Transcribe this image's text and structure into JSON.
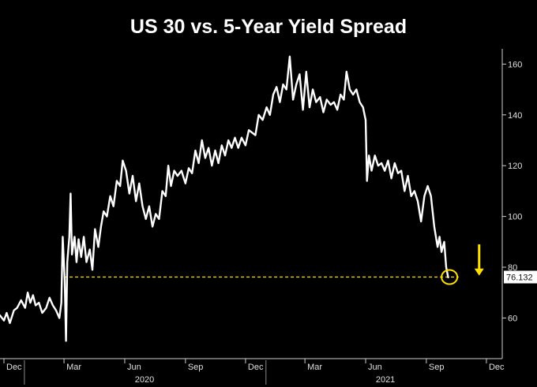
{
  "chart_data": {
    "type": "line",
    "title": "US 30 vs. 5-Year Yield Spread",
    "xlabel": "",
    "ylabel": "",
    "xlim": [
      "2019-11-25",
      "2021-12-25"
    ],
    "ylim": [
      44,
      166
    ],
    "x_ticks": [
      "Dec",
      "Mar",
      "Jun",
      "Sep",
      "Dec",
      "Mar",
      "Jun",
      "Sep",
      "Dec"
    ],
    "x_tick_dates": [
      "2019-12-01",
      "2020-03-01",
      "2020-06-01",
      "2020-09-01",
      "2020-12-01",
      "2021-03-01",
      "2021-06-01",
      "2021-09-01",
      "2021-12-01"
    ],
    "year_labels": [
      {
        "text": "2020",
        "date": "2020-07-01"
      },
      {
        "text": "2021",
        "date": "2021-07-01"
      }
    ],
    "y_ticks": [
      60,
      80,
      100,
      120,
      140,
      160
    ],
    "y_axis_position": "right",
    "grid": false,
    "last_value_label": "76.132",
    "reference_line": {
      "y": 76.132,
      "from": "2020-03-01",
      "to": "2021-10-20"
    },
    "series": [
      {
        "color": "#ffffff",
        "points": [
          [
            "2019-11-25",
            61
          ],
          [
            "2019-12-01",
            59
          ],
          [
            "2019-12-05",
            62
          ],
          [
            "2019-12-10",
            58
          ],
          [
            "2019-12-16",
            63
          ],
          [
            "2019-12-21",
            64
          ],
          [
            "2019-12-27",
            67
          ],
          [
            "2020-01-02",
            64
          ],
          [
            "2020-01-06",
            70
          ],
          [
            "2020-01-10",
            66
          ],
          [
            "2020-01-14",
            69
          ],
          [
            "2020-01-18",
            65
          ],
          [
            "2020-01-23",
            66
          ],
          [
            "2020-01-28",
            62
          ],
          [
            "2020-02-03",
            64
          ],
          [
            "2020-02-08",
            68
          ],
          [
            "2020-02-13",
            65
          ],
          [
            "2020-02-18",
            63
          ],
          [
            "2020-02-23",
            60
          ],
          [
            "2020-02-26",
            66
          ],
          [
            "2020-02-28",
            92
          ],
          [
            "2020-03-02",
            75
          ],
          [
            "2020-03-04",
            51
          ],
          [
            "2020-03-06",
            82
          ],
          [
            "2020-03-09",
            92
          ],
          [
            "2020-03-11",
            109
          ],
          [
            "2020-03-13",
            85
          ],
          [
            "2020-03-17",
            92
          ],
          [
            "2020-03-20",
            82
          ],
          [
            "2020-03-23",
            91
          ],
          [
            "2020-03-27",
            84
          ],
          [
            "2020-03-31",
            92
          ],
          [
            "2020-04-04",
            82
          ],
          [
            "2020-04-09",
            87
          ],
          [
            "2020-04-13",
            79
          ],
          [
            "2020-04-17",
            95
          ],
          [
            "2020-04-22",
            88
          ],
          [
            "2020-04-26",
            96
          ],
          [
            "2020-04-30",
            102
          ],
          [
            "2020-05-05",
            100
          ],
          [
            "2020-05-10",
            108
          ],
          [
            "2020-05-15",
            104
          ],
          [
            "2020-05-20",
            114
          ],
          [
            "2020-05-25",
            112
          ],
          [
            "2020-05-29",
            122
          ],
          [
            "2020-06-03",
            118
          ],
          [
            "2020-06-08",
            109
          ],
          [
            "2020-06-13",
            116
          ],
          [
            "2020-06-18",
            106
          ],
          [
            "2020-06-23",
            113
          ],
          [
            "2020-06-28",
            104
          ],
          [
            "2020-07-03",
            99
          ],
          [
            "2020-07-08",
            104
          ],
          [
            "2020-07-13",
            96
          ],
          [
            "2020-07-18",
            101
          ],
          [
            "2020-07-23",
            99
          ],
          [
            "2020-07-28",
            110
          ],
          [
            "2020-08-02",
            108
          ],
          [
            "2020-08-06",
            120
          ],
          [
            "2020-08-10",
            112
          ],
          [
            "2020-08-15",
            118
          ],
          [
            "2020-08-20",
            116
          ],
          [
            "2020-08-26",
            118
          ],
          [
            "2020-09-01",
            113
          ],
          [
            "2020-09-06",
            119
          ],
          [
            "2020-09-11",
            117
          ],
          [
            "2020-09-16",
            126
          ],
          [
            "2020-09-21",
            121
          ],
          [
            "2020-09-26",
            130
          ],
          [
            "2020-10-01",
            123
          ],
          [
            "2020-10-06",
            127
          ],
          [
            "2020-10-11",
            120
          ],
          [
            "2020-10-16",
            126
          ],
          [
            "2020-10-21",
            121
          ],
          [
            "2020-10-26",
            128
          ],
          [
            "2020-10-31",
            124
          ],
          [
            "2020-11-05",
            130
          ],
          [
            "2020-11-10",
            127
          ],
          [
            "2020-11-15",
            131
          ],
          [
            "2020-11-20",
            127
          ],
          [
            "2020-11-25",
            131
          ],
          [
            "2020-12-01",
            128
          ],
          [
            "2020-12-06",
            134
          ],
          [
            "2020-12-11",
            133
          ],
          [
            "2020-12-16",
            132
          ],
          [
            "2020-12-21",
            140
          ],
          [
            "2020-12-27",
            138
          ],
          [
            "2021-01-02",
            143
          ],
          [
            "2021-01-07",
            140
          ],
          [
            "2021-01-12",
            148
          ],
          [
            "2021-01-17",
            151
          ],
          [
            "2021-01-22",
            145
          ],
          [
            "2021-01-27",
            152
          ],
          [
            "2021-02-01",
            150
          ],
          [
            "2021-02-06",
            163
          ],
          [
            "2021-02-11",
            146
          ],
          [
            "2021-02-16",
            152
          ],
          [
            "2021-02-21",
            156
          ],
          [
            "2021-02-26",
            142
          ],
          [
            "2021-03-03",
            157
          ],
          [
            "2021-03-08",
            143
          ],
          [
            "2021-03-13",
            150
          ],
          [
            "2021-03-18",
            145
          ],
          [
            "2021-03-24",
            147
          ],
          [
            "2021-03-29",
            141
          ],
          [
            "2021-04-03",
            146
          ],
          [
            "2021-04-09",
            144
          ],
          [
            "2021-04-14",
            145
          ],
          [
            "2021-04-19",
            142
          ],
          [
            "2021-04-24",
            148
          ],
          [
            "2021-04-29",
            146
          ],
          [
            "2021-05-03",
            157
          ],
          [
            "2021-05-08",
            150
          ],
          [
            "2021-05-13",
            148
          ],
          [
            "2021-05-18",
            150
          ],
          [
            "2021-05-23",
            145
          ],
          [
            "2021-05-28",
            143
          ],
          [
            "2021-06-01",
            138
          ],
          [
            "2021-06-03",
            114
          ],
          [
            "2021-06-06",
            124
          ],
          [
            "2021-06-10",
            118
          ],
          [
            "2021-06-15",
            124
          ],
          [
            "2021-06-20",
            120
          ],
          [
            "2021-06-25",
            121
          ],
          [
            "2021-06-30",
            118
          ],
          [
            "2021-07-05",
            122
          ],
          [
            "2021-07-10",
            115
          ],
          [
            "2021-07-15",
            121
          ],
          [
            "2021-07-20",
            117
          ],
          [
            "2021-07-25",
            118
          ],
          [
            "2021-07-30",
            110
          ],
          [
            "2021-08-04",
            116
          ],
          [
            "2021-08-09",
            108
          ],
          [
            "2021-08-14",
            110
          ],
          [
            "2021-08-19",
            106
          ],
          [
            "2021-08-24",
            98
          ],
          [
            "2021-08-29",
            108
          ],
          [
            "2021-09-03",
            112
          ],
          [
            "2021-09-08",
            108
          ],
          [
            "2021-09-13",
            96
          ],
          [
            "2021-09-18",
            88
          ],
          [
            "2021-09-21",
            92
          ],
          [
            "2021-09-24",
            86
          ],
          [
            "2021-09-28",
            90
          ],
          [
            "2021-10-01",
            80
          ],
          [
            "2021-10-04",
            76
          ]
        ]
      }
    ]
  },
  "annotations": {
    "circle": {
      "date": "2021-10-06",
      "value": 76.132,
      "color": "#ffe000"
    },
    "arrow": {
      "date": "2021-11-20",
      "from_value": 89,
      "to_value": 77,
      "color": "#ffe000"
    },
    "reference_line_color": "#ffe000"
  }
}
